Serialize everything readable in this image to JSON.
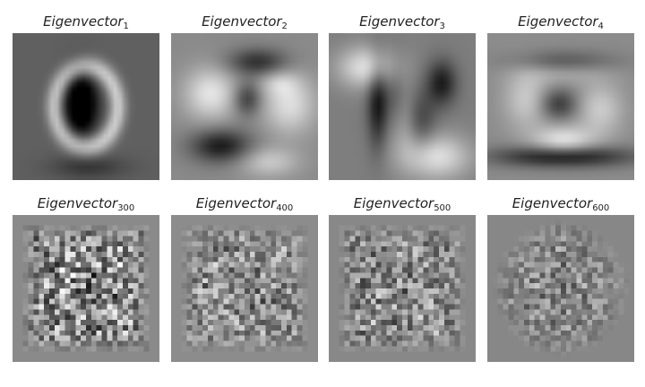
{
  "panels": [
    {
      "title": "Eigenvector",
      "subscript": "1",
      "pattern": "ring-zero",
      "base_gray": "#6e6e6e"
    },
    {
      "title": "Eigenvector",
      "subscript": "2",
      "pattern": "smooth-blobs",
      "base_gray": "#8a8a8a"
    },
    {
      "title": "Eigenvector",
      "subscript": "3",
      "pattern": "smooth-diagonal",
      "base_gray": "#7e7e7e"
    },
    {
      "title": "Eigenvector",
      "subscript": "4",
      "pattern": "smooth-horizontal",
      "base_gray": "#8c8c8c"
    },
    {
      "title": "Eigenvector",
      "subscript": "300",
      "pattern": "noise-high",
      "base_gray": "#8a8a8a"
    },
    {
      "title": "Eigenvector",
      "subscript": "400",
      "pattern": "noise-medium",
      "base_gray": "#8c8c8c"
    },
    {
      "title": "Eigenvector",
      "subscript": "500",
      "pattern": "noise-medium",
      "base_gray": "#888888"
    },
    {
      "title": "Eigenvector",
      "subscript": "600",
      "pattern": "noise-low",
      "base_gray": "#878787"
    }
  ]
}
